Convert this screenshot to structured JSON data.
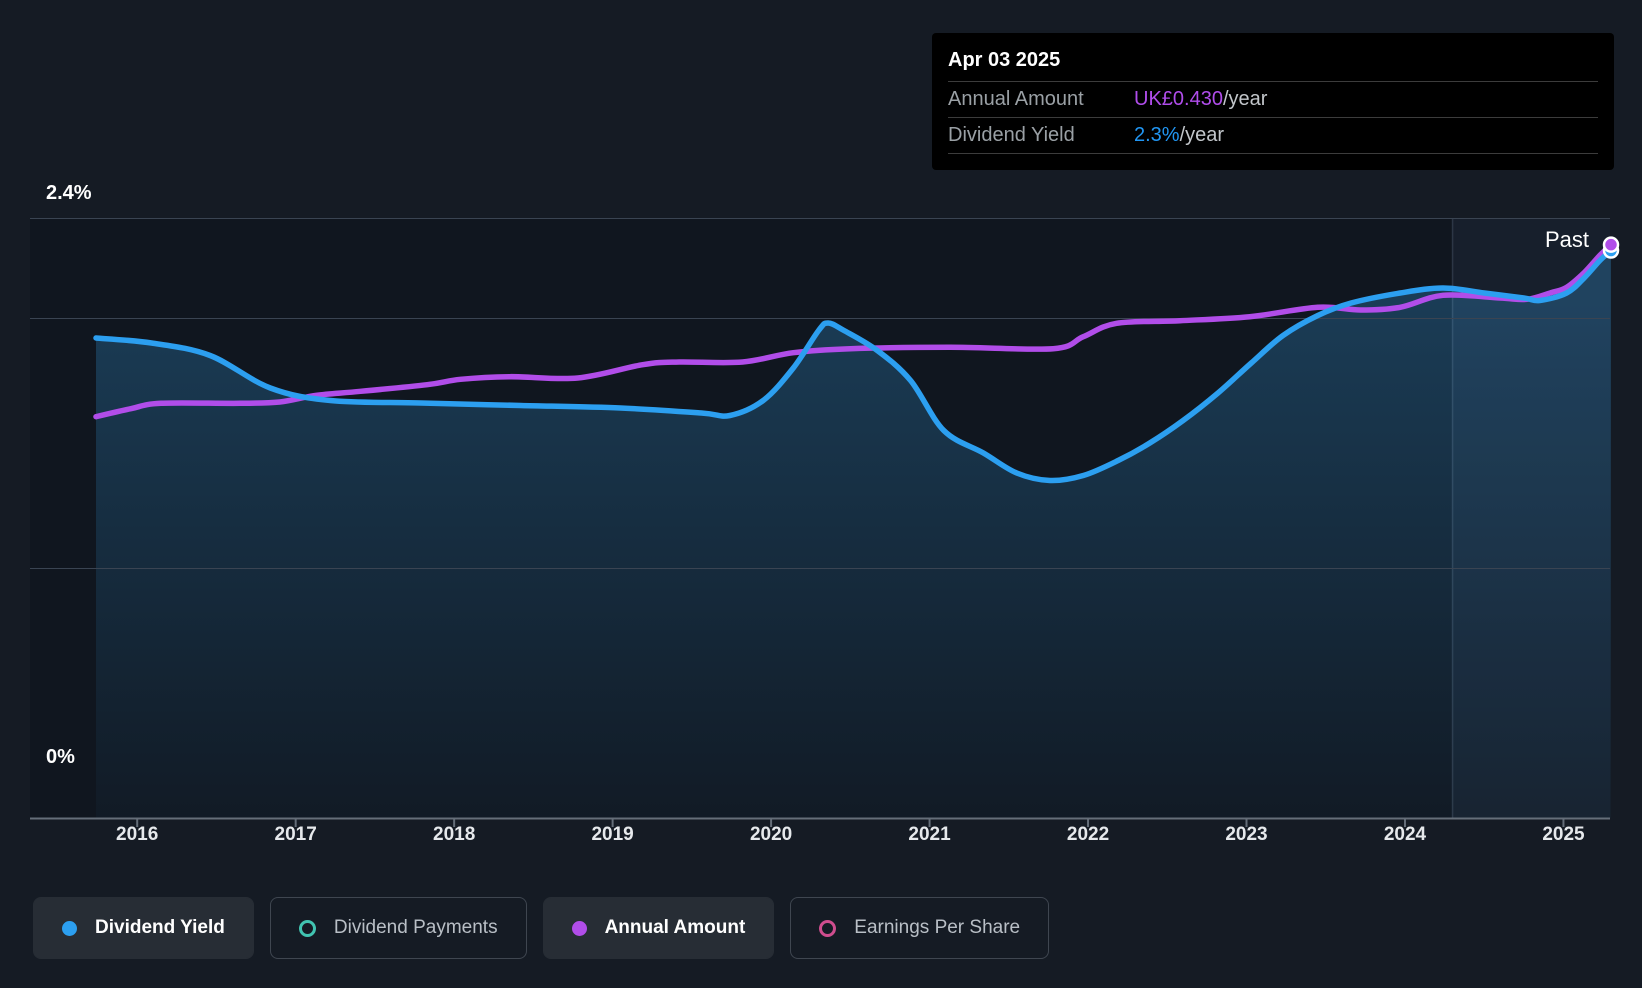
{
  "page": {
    "background": "#151B24"
  },
  "tooltip": {
    "date": "Apr 03 2025",
    "rows": [
      {
        "id": "annual-amount",
        "label": "Annual Amount",
        "value": "UK£0.430",
        "suffix": "/year",
        "value_color": "#b04deb"
      },
      {
        "id": "dividend-yield",
        "label": "Dividend Yield",
        "value": "2.3%",
        "suffix": "/year",
        "value_color": "#2196f3"
      }
    ]
  },
  "chart_data": {
    "type": "area",
    "x_ticks": [
      "2016",
      "2017",
      "2018",
      "2019",
      "2020",
      "2021",
      "2022",
      "2023",
      "2024",
      "2025"
    ],
    "x_range": [
      2015.74,
      2025.3
    ],
    "y_axis": {
      "unit": "%",
      "range": [
        0,
        2.4
      ],
      "top_label": "2.4%",
      "bottom_label": "0%",
      "gridlines": [
        2.4,
        2.0,
        1.0
      ]
    },
    "amount_axis": {
      "unit": "UK£",
      "range": [
        0,
        0.45
      ]
    },
    "past_label": "Past",
    "past_start_year": 2024.3,
    "series": [
      {
        "name": "Dividend Yield",
        "axis": "yield",
        "color": "#2c9ff0",
        "area": true,
        "points": [
          [
            2015.74,
            1.92
          ],
          [
            2016.09,
            1.9
          ],
          [
            2016.46,
            1.85
          ],
          [
            2016.84,
            1.72
          ],
          [
            2017.22,
            1.67
          ],
          [
            2017.79,
            1.66
          ],
          [
            2018.42,
            1.65
          ],
          [
            2019.05,
            1.64
          ],
          [
            2019.56,
            1.62
          ],
          [
            2019.74,
            1.61
          ],
          [
            2019.95,
            1.67
          ],
          [
            2020.14,
            1.8
          ],
          [
            2020.3,
            1.95
          ],
          [
            2020.36,
            1.98
          ],
          [
            2020.46,
            1.95
          ],
          [
            2020.67,
            1.87
          ],
          [
            2020.88,
            1.75
          ],
          [
            2021.09,
            1.55
          ],
          [
            2021.34,
            1.46
          ],
          [
            2021.55,
            1.38
          ],
          [
            2021.76,
            1.35
          ],
          [
            2021.97,
            1.37
          ],
          [
            2022.19,
            1.43
          ],
          [
            2022.39,
            1.5
          ],
          [
            2022.6,
            1.59
          ],
          [
            2022.82,
            1.7
          ],
          [
            2023.03,
            1.82
          ],
          [
            2023.23,
            1.93
          ],
          [
            2023.45,
            2.01
          ],
          [
            2023.66,
            2.06
          ],
          [
            2023.97,
            2.1
          ],
          [
            2024.24,
            2.12
          ],
          [
            2024.5,
            2.1
          ],
          [
            2024.75,
            2.08
          ],
          [
            2024.85,
            2.07
          ],
          [
            2025.02,
            2.1
          ],
          [
            2025.13,
            2.16
          ],
          [
            2025.23,
            2.23
          ],
          [
            2025.3,
            2.27
          ]
        ]
      },
      {
        "name": "Annual Amount",
        "axis": "amount",
        "color": "#b14de9",
        "area": false,
        "points": [
          [
            2015.74,
            0.301
          ],
          [
            2015.96,
            0.307
          ],
          [
            2016.15,
            0.311
          ],
          [
            2016.65,
            0.311
          ],
          [
            2016.9,
            0.312
          ],
          [
            2017.13,
            0.317
          ],
          [
            2017.41,
            0.32
          ],
          [
            2017.83,
            0.325
          ],
          [
            2018.04,
            0.329
          ],
          [
            2018.35,
            0.331
          ],
          [
            2018.78,
            0.33
          ],
          [
            2019.19,
            0.34
          ],
          [
            2019.42,
            0.342
          ],
          [
            2019.82,
            0.342
          ],
          [
            2020.14,
            0.349
          ],
          [
            2020.5,
            0.352
          ],
          [
            2021.13,
            0.353
          ],
          [
            2021.78,
            0.352
          ],
          [
            2021.97,
            0.361
          ],
          [
            2022.18,
            0.371
          ],
          [
            2022.58,
            0.373
          ],
          [
            2023.02,
            0.376
          ],
          [
            2023.45,
            0.383
          ],
          [
            2023.72,
            0.381
          ],
          [
            2023.97,
            0.383
          ],
          [
            2024.24,
            0.392
          ],
          [
            2024.6,
            0.39
          ],
          [
            2024.77,
            0.389
          ],
          [
            2024.92,
            0.394
          ],
          [
            2025.02,
            0.398
          ],
          [
            2025.13,
            0.409
          ],
          [
            2025.23,
            0.422
          ],
          [
            2025.3,
            0.43
          ]
        ]
      }
    ]
  },
  "legend": [
    {
      "label": "Dividend Yield",
      "color": "#2c9ff0",
      "marker": "filled",
      "active": true
    },
    {
      "label": "Dividend Payments",
      "color": "#41c4b1",
      "marker": "ring",
      "active": false
    },
    {
      "label": "Annual Amount",
      "color": "#b14de9",
      "marker": "filled",
      "active": true
    },
    {
      "label": "Earnings Per Share",
      "color": "#cf4d8e",
      "marker": "ring",
      "active": false
    }
  ]
}
